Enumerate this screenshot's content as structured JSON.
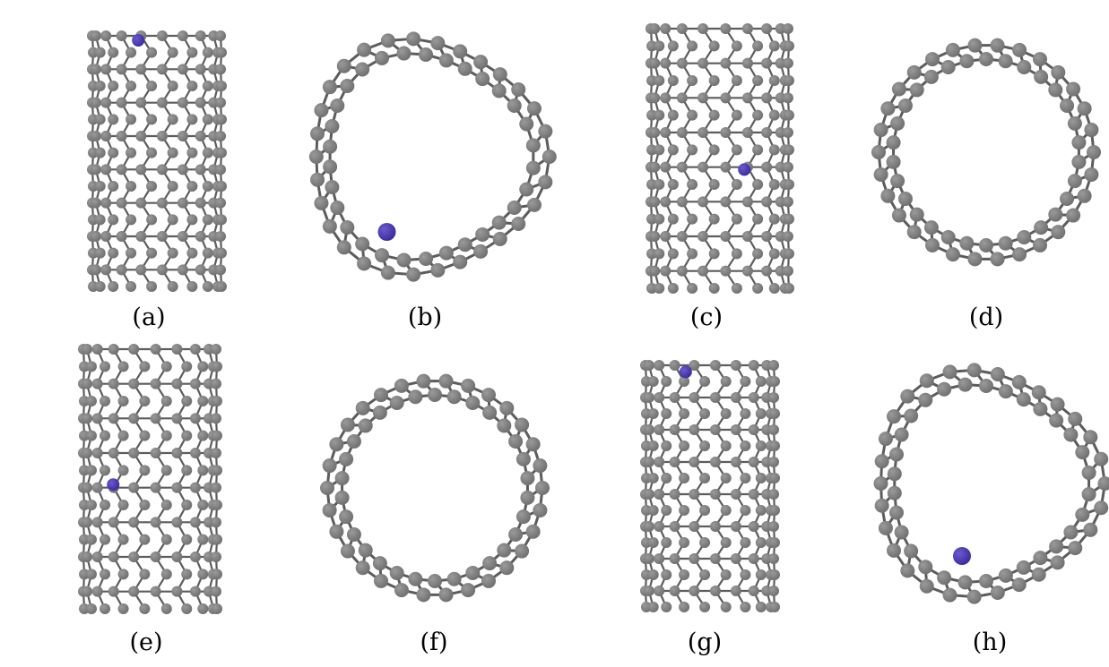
{
  "figure": {
    "panels": [
      {
        "label": "(a)",
        "view": "side",
        "dopant_visible": true
      },
      {
        "label": "(b)",
        "view": "end",
        "dopant_visible": true
      },
      {
        "label": "(c)",
        "view": "side",
        "dopant_visible": true
      },
      {
        "label": "(d)",
        "view": "end",
        "dopant_visible": false
      },
      {
        "label": "(e)",
        "view": "side",
        "dopant_visible": true
      },
      {
        "label": "(f)",
        "view": "end",
        "dopant_visible": false
      },
      {
        "label": "(g)",
        "view": "side",
        "dopant_visible": true
      },
      {
        "label": "(h)",
        "view": "end",
        "dopant_visible": true
      }
    ],
    "colors": {
      "carbon": "#6e6e6e",
      "carbon_highlight": "#9a9a9a",
      "bond": "#5c5c5c",
      "dopant": "#3a2a9c"
    }
  }
}
